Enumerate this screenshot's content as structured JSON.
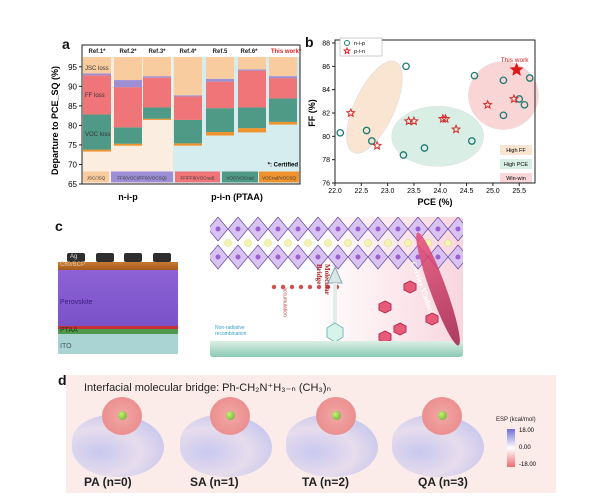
{
  "panels": {
    "a": "a",
    "b": "b",
    "c": "c",
    "d": "d"
  },
  "chart_data": [
    {
      "type": "bar",
      "stacked": true,
      "ylabel": "Departure to PCE_SQ (%)",
      "ylim": [
        65,
        97.5
      ],
      "yticks": [
        65,
        70,
        75,
        80,
        85,
        90,
        95
      ],
      "categories": [
        "Ref.1*",
        "Ref.2*",
        "Ref.3*",
        "Ref.4*",
        "Ref.5",
        "Ref.6*",
        "This work*"
      ],
      "groups": [
        {
          "label": "n-i-p",
          "members": 3
        },
        {
          "label": "p-i-n (PTAA)",
          "members": 4
        }
      ],
      "segments": [
        {
          "name": "Voc_rad/Voc_SQ",
          "legend": "VOCrad/VOCSQ",
          "color": "#f0932e",
          "ranges": [
            [
              73.3,
              73.8
            ],
            [
              74.8,
              75.3
            ],
            [
              81.4,
              81.7
            ],
            [
              74.8,
              75.4
            ],
            [
              77.4,
              78.3
            ],
            [
              78.2,
              79.3
            ],
            [
              80.2,
              80.9
            ]
          ]
        },
        {
          "name": "Voc loss",
          "legend": "VOC/VOCrad",
          "color": "#4e9a86",
          "ranges": [
            [
              73.8,
              82.8
            ],
            [
              75.3,
              79.5
            ],
            [
              81.7,
              84.6
            ],
            [
              75.4,
              81.4
            ],
            [
              78.3,
              84.4
            ],
            [
              79.3,
              84.6
            ],
            [
              80.9,
              86.9
            ]
          ]
        },
        {
          "name": "FF loss",
          "legend": "FF/FF0(VOCrad)",
          "color": "#ef7579",
          "ranges": [
            [
              82.8,
              92.8
            ],
            [
              79.5,
              89.8
            ],
            [
              84.6,
              92.2
            ],
            [
              81.4,
              87.4
            ],
            [
              84.4,
              91.2
            ],
            [
              84.6,
              94.0
            ],
            [
              86.9,
              92.1
            ]
          ]
        },
        {
          "name": "",
          "legend": "FF0(VOC)/FF0(VOCSQ)",
          "color": "#9c8fd6",
          "ranges": [
            [
              92.8,
              93.3
            ],
            [
              89.8,
              91.6
            ],
            [
              92.2,
              92.6
            ],
            [
              87.4,
              87.7
            ],
            [
              91.2,
              91.9
            ],
            [
              94.0,
              94.3
            ],
            [
              92.1,
              92.6
            ]
          ]
        },
        {
          "name": "JSC loss",
          "legend": "JSC/JSQ",
          "color": "#f9cc9f",
          "ranges": [
            [
              93.3,
              100
            ],
            [
              91.6,
              100
            ],
            [
              92.6,
              100
            ],
            [
              87.7,
              100
            ],
            [
              91.9,
              100
            ],
            [
              94.3,
              100
            ],
            [
              92.6,
              100
            ]
          ]
        }
      ],
      "annotations": [
        "JSC loss",
        "FF loss",
        "VOC loss",
        "*: Certified"
      ],
      "colors": {
        "nip_bg": "#fbeee1",
        "pin_bg": "#d6edef",
        "this_work": "#e02020"
      }
    },
    {
      "type": "scatter",
      "xlabel": "PCE (%)",
      "ylabel": "FF (%)",
      "xlim": [
        22.0,
        25.8
      ],
      "ylim": [
        76,
        88
      ],
      "xticks": [
        "22.0",
        "22.5",
        "23.0",
        "23.5",
        "24.0",
        "24.5",
        "25.0",
        "25.5"
      ],
      "yticks": [
        "76",
        "78",
        "80",
        "82",
        "84",
        "86",
        "88"
      ],
      "series": [
        {
          "name": "n-i-p",
          "marker": "circle",
          "color": "#1f7a74",
          "points": [
            [
              22.1,
              80.3
            ],
            [
              22.6,
              80.5
            ],
            [
              22.7,
              79.6
            ],
            [
              23.3,
              78.4
            ],
            [
              23.35,
              86.0
            ],
            [
              23.7,
              79.0
            ],
            [
              24.6,
              79.6
            ],
            [
              24.65,
              85.2
            ],
            [
              25.2,
              84.8
            ],
            [
              25.2,
              81.8
            ],
            [
              25.5,
              83.2
            ],
            [
              25.6,
              82.7
            ],
            [
              25.7,
              85.0
            ]
          ]
        },
        {
          "name": "p-i-n",
          "marker": "star",
          "color": "#d42a2a",
          "points": [
            [
              22.3,
              82.0
            ],
            [
              22.8,
              79.2
            ],
            [
              23.4,
              81.3
            ],
            [
              23.5,
              81.3
            ],
            [
              24.05,
              81.5
            ],
            [
              24.1,
              81.5
            ],
            [
              24.3,
              80.6
            ],
            [
              24.9,
              82.7
            ],
            [
              25.4,
              83.2
            ]
          ]
        }
      ],
      "highlight": {
        "label": "This work",
        "point": [
          25.45,
          85.7
        ],
        "color": "#e01818"
      },
      "regions": [
        {
          "label": "High FF",
          "color": "#f8d9bf",
          "center": [
            22.75,
            82.5
          ]
        },
        {
          "label": "High PCE",
          "color": "#c9e8da",
          "center": [
            23.95,
            80.0
          ]
        },
        {
          "label": "Win-win",
          "color": "#f7c4c6",
          "center": [
            25.2,
            83.5
          ]
        }
      ]
    }
  ],
  "device": {
    "layers": [
      "Ag",
      "C60/BCP",
      "Perovskite",
      "PTAA",
      "ITO"
    ],
    "callouts": [
      "Non-radiative recombination",
      "accumulation",
      "Molecular Bridge",
      "Carrier Viaduct"
    ]
  },
  "esp": {
    "title": "Interfacial molecular bridge: Ph-CH₂N⁺H₃₋ₙ (CH₃)ₙ",
    "molecules": [
      "PA (n=0)",
      "SA (n=1)",
      "TA (n=2)",
      "QA (n=3)"
    ],
    "colorbar": {
      "title": "ESP (kcal/mol)",
      "ticks": [
        "18.00",
        "0.00",
        "-18.00"
      ],
      "max_color": "#6f6fd8",
      "min_color": "#ec6e6e"
    }
  }
}
